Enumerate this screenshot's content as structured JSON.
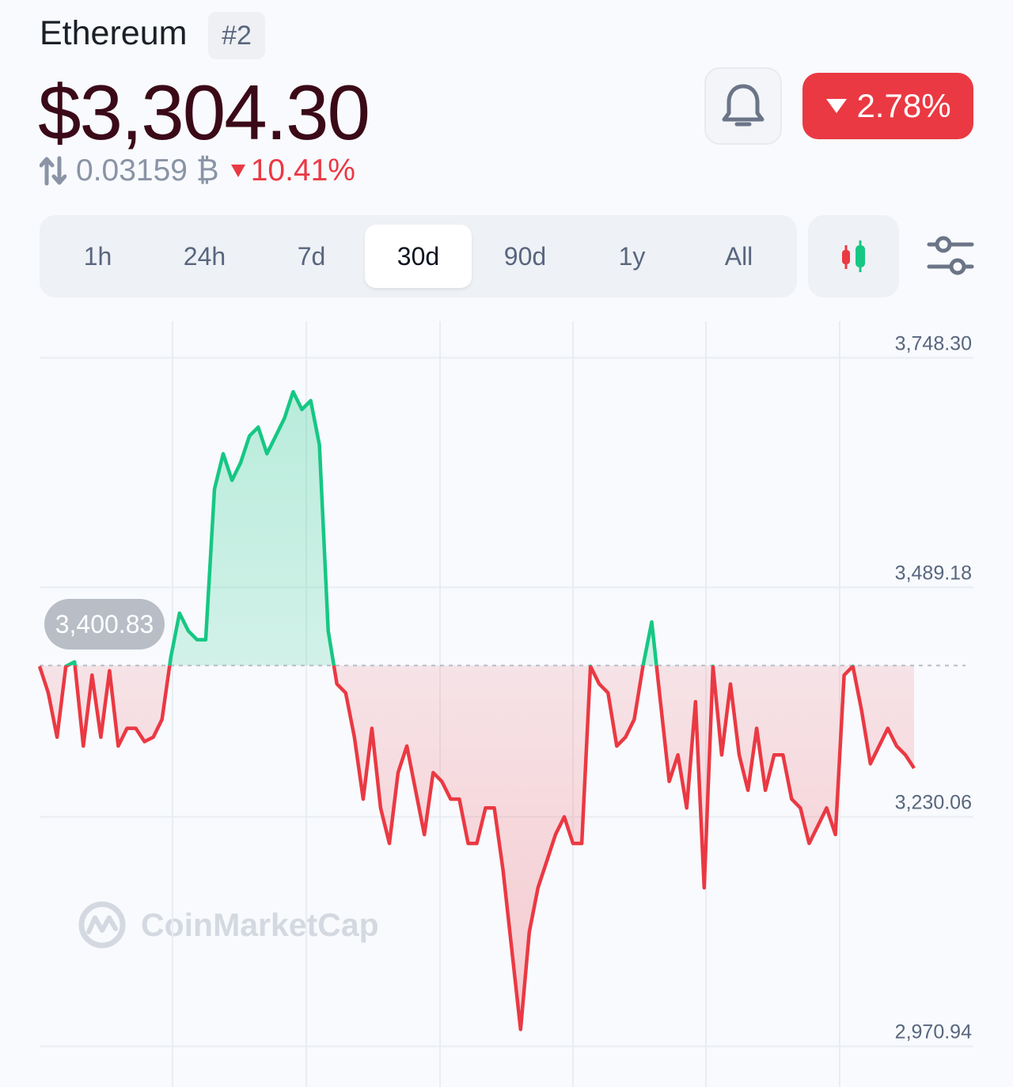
{
  "header": {
    "coin_name": "Ethereum",
    "rank": "#2",
    "price": "$3,304.30",
    "btc_price": "0.03159 ₿",
    "btc_change": "10.41%",
    "change_24h": "2.78%"
  },
  "tabs": [
    {
      "label": "1h",
      "active": false
    },
    {
      "label": "24h",
      "active": false
    },
    {
      "label": "7d",
      "active": false
    },
    {
      "label": "30d",
      "active": true
    },
    {
      "label": "90d",
      "active": false
    },
    {
      "label": "1y",
      "active": false
    },
    {
      "label": "All",
      "active": false
    }
  ],
  "icons": {
    "swap": "swap-arrows-icon",
    "bell": "bell-icon",
    "candlestick": "candlestick-icon",
    "settings": "sliders-icon",
    "watermark_logo": "coinmarketcap-logo"
  },
  "colors": {
    "up": "#16c784",
    "down": "#ea3943",
    "price_text": "#3b0a18",
    "muted": "#58667e"
  },
  "watermark": "CoinMarketCap",
  "chart_data": {
    "type": "line",
    "reference_value": 3400.83,
    "reference_label": "3,400.83",
    "y_ticks": [
      "3,748.30",
      "3,489.18",
      "3,230.06",
      "2,970.94"
    ],
    "y_tick_values": [
      3748.3,
      3489.18,
      3230.06,
      2970.94
    ],
    "ylim": [
      2925,
      3795
    ],
    "grid": true,
    "x": [
      0,
      1,
      2,
      3,
      4,
      5,
      6,
      7,
      8,
      9,
      10,
      11,
      12,
      13,
      14,
      15,
      16,
      17,
      18,
      19,
      20,
      21,
      22,
      23,
      24,
      25,
      26,
      27,
      28,
      29,
      30,
      31,
      32,
      33,
      34,
      35,
      36,
      37,
      38,
      39,
      40,
      41,
      42,
      43,
      44,
      45,
      46,
      47,
      48,
      49,
      50,
      51,
      52,
      53,
      54,
      55,
      56,
      57,
      58,
      59,
      60,
      61,
      62,
      63,
      64,
      65,
      66,
      67,
      68,
      69,
      70,
      71,
      72,
      73,
      74,
      75,
      76,
      77,
      78,
      79,
      80,
      81,
      82,
      83,
      84,
      85,
      86,
      87,
      88,
      89,
      90,
      91,
      92,
      93,
      94,
      95,
      96,
      97,
      98,
      99,
      100
    ],
    "values": [
      3400,
      3370,
      3320,
      3400,
      3405,
      3310,
      3390,
      3320,
      3395,
      3310,
      3330,
      3330,
      3315,
      3320,
      3340,
      3410,
      3460,
      3440,
      3430,
      3430,
      3600,
      3640,
      3610,
      3630,
      3660,
      3670,
      3640,
      3660,
      3680,
      3710,
      3690,
      3700,
      3650,
      3440,
      3380,
      3370,
      3320,
      3250,
      3330,
      3240,
      3200,
      3280,
      3310,
      3260,
      3210,
      3280,
      3270,
      3250,
      3250,
      3200,
      3200,
      3240,
      3240,
      3170,
      3080,
      2990,
      3100,
      3150,
      3180,
      3210,
      3230,
      3200,
      3200,
      3400,
      3380,
      3370,
      3310,
      3320,
      3340,
      3400,
      3450,
      3360,
      3270,
      3300,
      3240,
      3360,
      3150,
      3400,
      3300,
      3380,
      3300,
      3260,
      3330,
      3260,
      3300,
      3300,
      3250,
      3240,
      3200,
      3220,
      3240,
      3210,
      3390,
      3400,
      3350,
      3290,
      3310,
      3330,
      3310,
      3300,
      3285
    ]
  }
}
